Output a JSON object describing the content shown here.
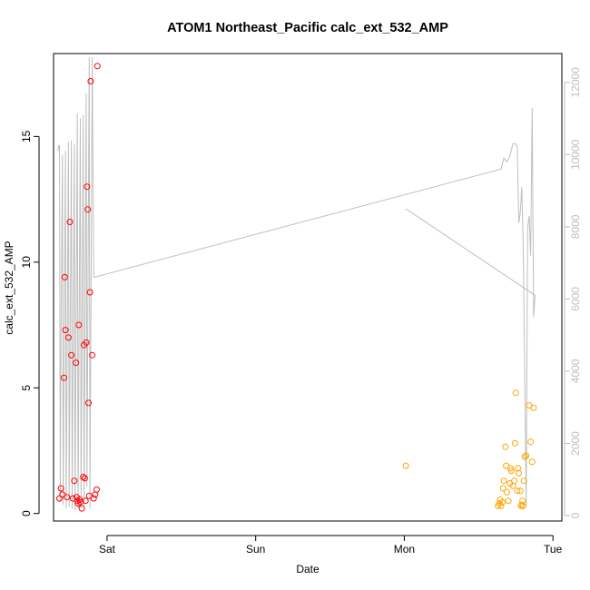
{
  "chart_data": {
    "type": "scatter",
    "title": "ATOM1 Northeast_Pacific calc_ext_532_AMP",
    "xlabel": "Date",
    "ylabel": "calc_ext_532_AMP",
    "x_ticks": [
      "Sat",
      "Sun",
      "Mon",
      "Tue"
    ],
    "x_tick_days": [
      1,
      2,
      3,
      4
    ],
    "xlim_days": [
      0.64,
      4.06
    ],
    "y_ticks": [
      "0",
      "5",
      "10",
      "15"
    ],
    "y_tick_values": [
      0,
      5,
      10,
      15
    ],
    "ylim": [
      -0.3,
      18.3
    ],
    "y2_ticks": [
      "0",
      "2000",
      "4000",
      "6000",
      "8000",
      "10000",
      "12000"
    ],
    "y2_tick_values": [
      0,
      2000,
      4000,
      6000,
      8000,
      10000,
      12000
    ],
    "y2lim": [
      -150,
      12800
    ],
    "colors": {
      "red": "#ff0000",
      "orange": "#ffa500",
      "line": "#bebebe",
      "y2_axis": "#bebebe",
      "axis": "#000000"
    },
    "series": [
      {
        "color": "red",
        "points": [
          [
            0.68,
            0.6
          ],
          [
            0.69,
            1.0
          ],
          [
            0.7,
            0.75
          ],
          [
            0.71,
            5.4
          ],
          [
            0.715,
            9.4
          ],
          [
            0.72,
            7.3
          ],
          [
            0.73,
            0.65
          ],
          [
            0.74,
            7.0
          ],
          [
            0.75,
            11.6
          ],
          [
            0.76,
            6.3
          ],
          [
            0.77,
            0.6
          ],
          [
            0.78,
            1.3
          ],
          [
            0.79,
            6.0
          ],
          [
            0.795,
            0.65
          ],
          [
            0.8,
            0.5
          ],
          [
            0.805,
            0.4
          ],
          [
            0.81,
            7.5
          ],
          [
            0.815,
            0.55
          ],
          [
            0.82,
            0.45
          ],
          [
            0.83,
            0.2
          ],
          [
            0.84,
            1.45
          ],
          [
            0.845,
            6.7
          ],
          [
            0.85,
            1.4
          ],
          [
            0.855,
            0.5
          ],
          [
            0.86,
            6.8
          ],
          [
            0.865,
            13.0
          ],
          [
            0.87,
            12.1
          ],
          [
            0.875,
            4.4
          ],
          [
            0.88,
            0.7
          ],
          [
            0.885,
            8.8
          ],
          [
            0.89,
            17.2
          ],
          [
            0.9,
            6.3
          ],
          [
            0.91,
            0.6
          ],
          [
            0.92,
            0.75
          ],
          [
            0.93,
            0.95
          ],
          [
            0.935,
            17.8
          ]
        ]
      },
      {
        "color": "orange",
        "points": [
          [
            3.01,
            1.9
          ],
          [
            3.63,
            0.3
          ],
          [
            3.64,
            0.4
          ],
          [
            3.645,
            0.55
          ],
          [
            3.65,
            0.3
          ],
          [
            3.66,
            0.45
          ],
          [
            3.665,
            1.0
          ],
          [
            3.67,
            1.3
          ],
          [
            3.68,
            2.65
          ],
          [
            3.685,
            1.9
          ],
          [
            3.69,
            0.85
          ],
          [
            3.7,
            0.5
          ],
          [
            3.71,
            1.2
          ],
          [
            3.715,
            1.8
          ],
          [
            3.72,
            1.7
          ],
          [
            3.73,
            1.1
          ],
          [
            3.74,
            1.3
          ],
          [
            3.745,
            2.8
          ],
          [
            3.75,
            4.8
          ],
          [
            3.76,
            0.9
          ],
          [
            3.765,
            1.8
          ],
          [
            3.77,
            1.6
          ],
          [
            3.78,
            0.9
          ],
          [
            3.785,
            0.3
          ],
          [
            3.79,
            0.35
          ],
          [
            3.795,
            0.5
          ],
          [
            3.8,
            0.3
          ],
          [
            3.805,
            1.3
          ],
          [
            3.81,
            2.25
          ],
          [
            3.82,
            2.3
          ],
          [
            3.84,
            4.3
          ],
          [
            3.85,
            2.85
          ],
          [
            3.86,
            2.05
          ],
          [
            3.87,
            4.2
          ]
        ]
      }
    ],
    "line_series": {
      "axis": "right",
      "color": "line",
      "points": [
        [
          0.67,
          10100
        ],
        [
          0.675,
          10250
        ],
        [
          0.68,
          10250
        ],
        [
          0.685,
          400
        ],
        [
          0.69,
          5000
        ],
        [
          0.7,
          10000
        ],
        [
          0.705,
          300
        ],
        [
          0.72,
          10100
        ],
        [
          0.725,
          200
        ],
        [
          0.74,
          10350
        ],
        [
          0.745,
          250
        ],
        [
          0.76,
          10400
        ],
        [
          0.765,
          200
        ],
        [
          0.78,
          10300
        ],
        [
          0.785,
          150
        ],
        [
          0.8,
          11150
        ],
        [
          0.805,
          200
        ],
        [
          0.82,
          11000
        ],
        [
          0.825,
          250
        ],
        [
          0.84,
          11100
        ],
        [
          0.845,
          200
        ],
        [
          0.86,
          11700
        ],
        [
          0.865,
          800
        ],
        [
          0.88,
          12700
        ],
        [
          0.885,
          200
        ],
        [
          0.9,
          12700
        ],
        [
          0.91,
          6600
        ],
        [
          3.65,
          9600
        ],
        [
          3.67,
          9900
        ],
        [
          3.69,
          9800
        ],
        [
          3.71,
          9950
        ],
        [
          3.73,
          10300
        ],
        [
          3.75,
          10300
        ],
        [
          3.76,
          10200
        ],
        [
          3.77,
          8100
        ],
        [
          3.78,
          8400
        ],
        [
          3.79,
          9100
        ],
        [
          3.8,
          7600
        ],
        [
          3.82,
          300
        ],
        [
          3.83,
          8000
        ],
        [
          3.84,
          8300
        ],
        [
          3.85,
          7200
        ],
        [
          3.86,
          11300
        ],
        [
          3.87,
          5500
        ],
        [
          3.88,
          6100
        ],
        [
          3.01,
          8500
        ],
        [
          3.88,
          6100
        ]
      ]
    }
  }
}
